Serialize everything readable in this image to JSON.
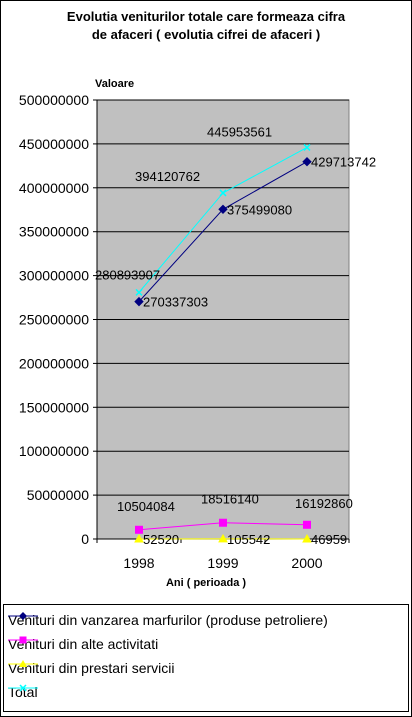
{
  "chart_data": {
    "type": "line",
    "title_line1": "Evolutia veniturilor totale care formeaza cifra",
    "title_line2": "de afaceri ( evolutia cifrei de afaceri )",
    "ylabel": "Valoare",
    "xlabel": "Ani ( perioada )",
    "categories": [
      "1998",
      "1999",
      "2000"
    ],
    "ylim": [
      0,
      500000000
    ],
    "yticks": [
      "0",
      "50000000",
      "100000000",
      "150000000",
      "200000000",
      "250000000",
      "300000000",
      "350000000",
      "400000000",
      "450000000",
      "500000000"
    ],
    "grid": true,
    "plot_background": "#c0c0c0",
    "legend_position": "bottom",
    "series": [
      {
        "name": "Venituri din vanzarea marfurilor (produse petroliere)",
        "values": [
          270337303,
          375499080,
          429713742
        ],
        "labels": [
          "270337303",
          "375499080",
          "429713742"
        ],
        "color": "#000080",
        "marker": "diamond"
      },
      {
        "name": "Venituri din alte activitati",
        "values": [
          10504084,
          18516140,
          16192860
        ],
        "labels": [
          "10504084",
          "18516140",
          "16192860"
        ],
        "color": "#ff00ff",
        "marker": "square"
      },
      {
        "name": "Venituri din prestari servicii",
        "values": [
          52520,
          105542,
          46959
        ],
        "labels": [
          "52520",
          "105542",
          "46959"
        ],
        "color": "#ffff00",
        "marker": "triangle"
      },
      {
        "name": "Total",
        "values": [
          280893907,
          394120762,
          445953561
        ],
        "labels": [
          "280893907",
          "394120762",
          "445953561"
        ],
        "color": "#00ffff",
        "marker": "x"
      }
    ]
  }
}
